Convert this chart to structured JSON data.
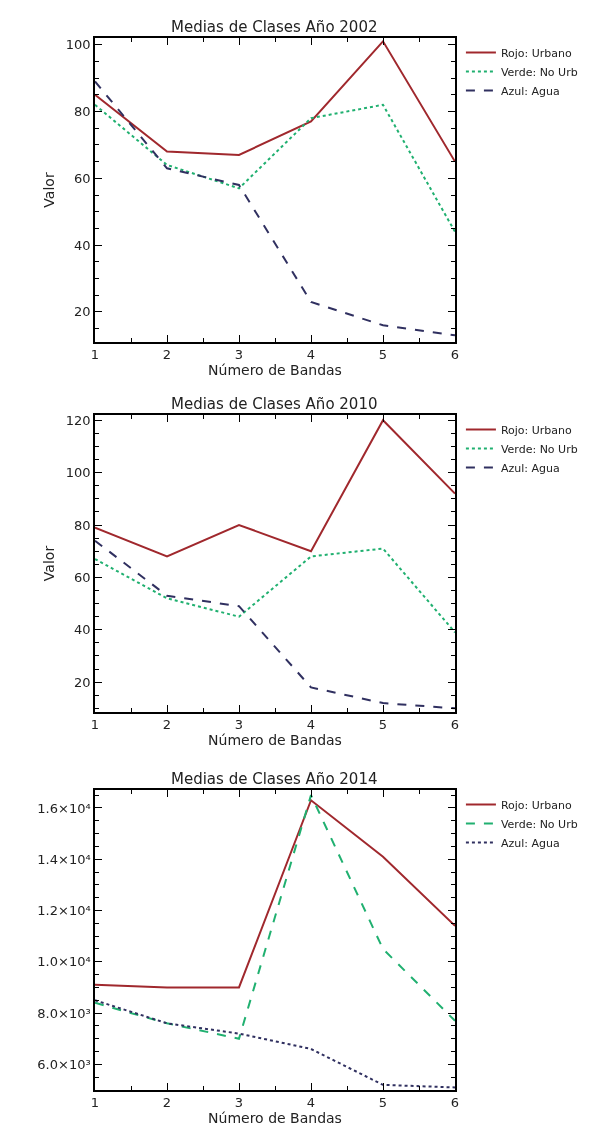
{
  "chart_data": [
    {
      "type": "line",
      "title": "Medias de Clases Año 2002",
      "xlabel": "Número de Bandas",
      "ylabel": "Valor",
      "x": [
        1,
        2,
        3,
        4,
        5,
        6
      ],
      "xlim": [
        1,
        6
      ],
      "xticks": [
        1,
        2,
        3,
        4,
        5,
        6
      ],
      "ylim": [
        11,
        102
      ],
      "yticks": [
        20,
        40,
        60,
        80,
        100
      ],
      "marker": "none",
      "legend": "right",
      "series": [
        {
          "name": "Rojo: Urbano",
          "color": "#a0282d",
          "line_style": "solid",
          "values": [
            85,
            68,
            67,
            77,
            101,
            65
          ]
        },
        {
          "name": "Verde: No Urb",
          "color": "#20b070",
          "line_style": "dotted",
          "values": [
            82,
            64,
            57,
            78,
            82,
            44
          ]
        },
        {
          "name": "Azul: Agua",
          "color": "#303060",
          "line_style": "dashed",
          "values": [
            89,
            63,
            58,
            23,
            16,
            13
          ]
        }
      ]
    },
    {
      "type": "line",
      "title": "Medias de Clases Año 2010",
      "xlabel": "Número de Bandas",
      "ylabel": "Valor",
      "x": [
        1,
        2,
        3,
        4,
        5,
        6
      ],
      "xlim": [
        1,
        6
      ],
      "xticks": [
        1,
        2,
        3,
        4,
        5,
        6
      ],
      "ylim": [
        8.6,
        122
      ],
      "yticks": [
        20,
        40,
        60,
        80,
        100,
        120
      ],
      "marker": "none",
      "legend": "right",
      "series": [
        {
          "name": "Rojo: Urbano",
          "color": "#a0282d",
          "line_style": "solid",
          "values": [
            79,
            68,
            80,
            70,
            120,
            92
          ]
        },
        {
          "name": "Verde: No Urb",
          "color": "#20b070",
          "line_style": "dotted",
          "values": [
            67,
            52,
            45,
            68,
            71,
            39
          ]
        },
        {
          "name": "Azul: Agua",
          "color": "#303060",
          "line_style": "dashed",
          "values": [
            74,
            53,
            49,
            18,
            12,
            10
          ]
        }
      ]
    },
    {
      "type": "line",
      "title": "Medias de Clases Año 2014",
      "xlabel": "Número de Bandas",
      "x": [
        1,
        2,
        3,
        4,
        5,
        6
      ],
      "xlim": [
        1,
        6
      ],
      "xticks": [
        1,
        2,
        3,
        4,
        5,
        6
      ],
      "ylim": [
        5000,
        16700
      ],
      "yticks": [
        {
          "value": 6000,
          "label": "6.0×10³"
        },
        {
          "value": 8000,
          "label": "8.0×10³"
        },
        {
          "value": 10000,
          "label": "1.0×10⁴"
        },
        {
          "value": 12000,
          "label": "1.2×10⁴"
        },
        {
          "value": 14000,
          "label": "1.4×10⁴"
        },
        {
          "value": 16000,
          "label": "1.6×10⁴"
        }
      ],
      "marker": "none",
      "legend": "right",
      "series": [
        {
          "name": "Rojo: Urbano",
          "color": "#a0282d",
          "line_style": "solid",
          "values": [
            9100,
            9000,
            9000,
            16300,
            14100,
            11400
          ]
        },
        {
          "name": "Verde: No Urb",
          "color": "#20b070",
          "line_style": "dashed",
          "values": [
            8400,
            7600,
            7000,
            16500,
            10500,
            7700
          ]
        },
        {
          "name": "Azul: Agua",
          "color": "#303060",
          "line_style": "dotted",
          "values": [
            8500,
            7600,
            7200,
            6600,
            5200,
            5100
          ]
        }
      ]
    }
  ]
}
